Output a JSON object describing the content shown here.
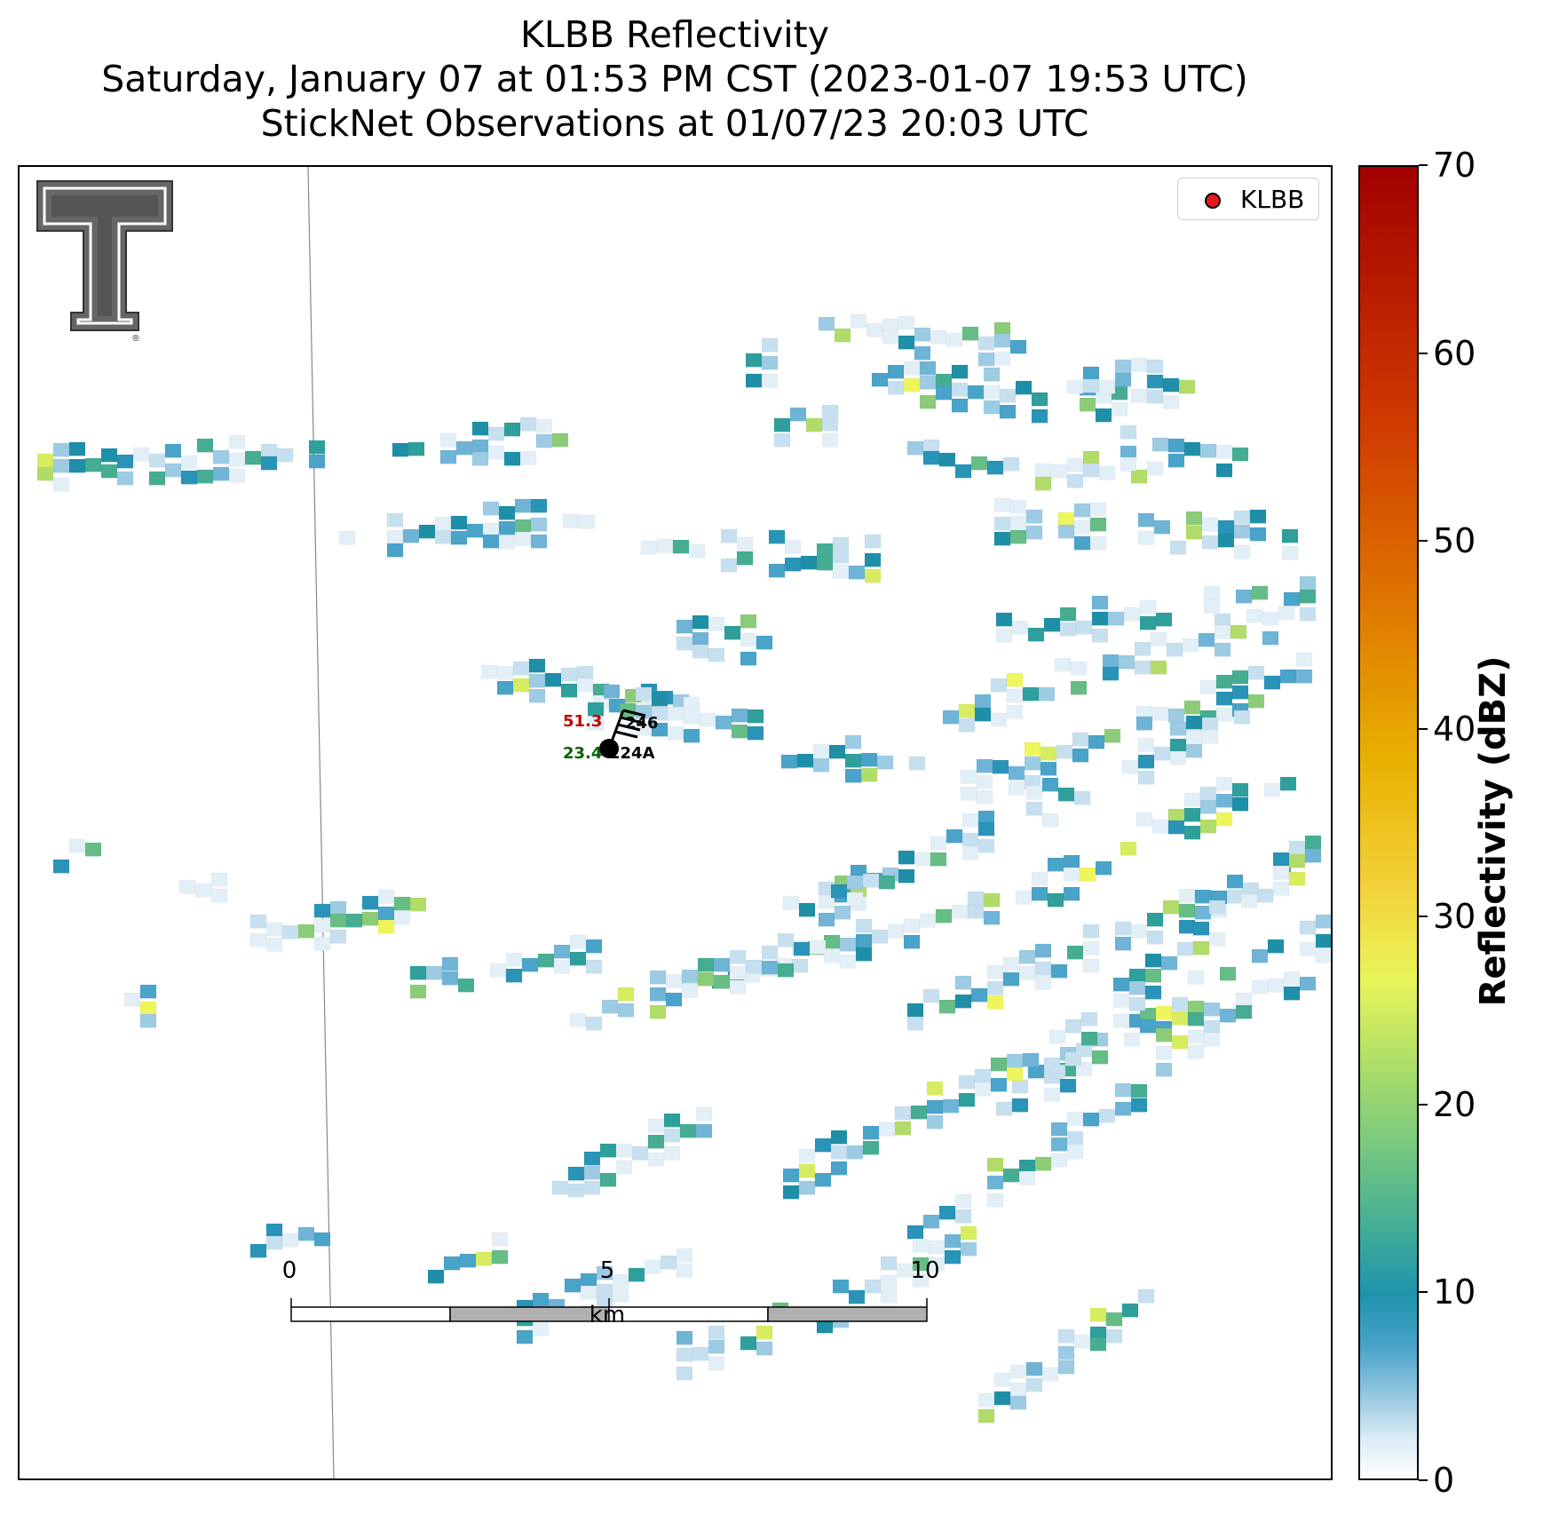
{
  "title": {
    "line1": "KLBB Reflectivity",
    "line2": "Saturday, January 07 at 01:53 PM CST (2023-01-07 19:53 UTC)",
    "line3": "StickNet Observations at 01/07/23 20:03 UTC"
  },
  "legend": {
    "label": "KLBB",
    "marker_color": "#e41a1c"
  },
  "colorbar": {
    "label": "Reflectivity (dBZ)",
    "min": 0,
    "max": 70,
    "ticks": [
      "0",
      "10",
      "20",
      "30",
      "40",
      "50",
      "60",
      "70"
    ]
  },
  "scalebar": {
    "labels": [
      "0",
      "5",
      "10"
    ],
    "unit": "km",
    "total_km": 10
  },
  "station": {
    "id": "224A",
    "temperature": "51.3",
    "dewpoint": "23.4",
    "pressure_code": "246",
    "temperature_color": "#c00000",
    "dewpoint_color": "#006400"
  },
  "icons": {
    "logo": "texas-tech-double-t-logo-icon",
    "barb": "wind-barb-icon"
  }
}
